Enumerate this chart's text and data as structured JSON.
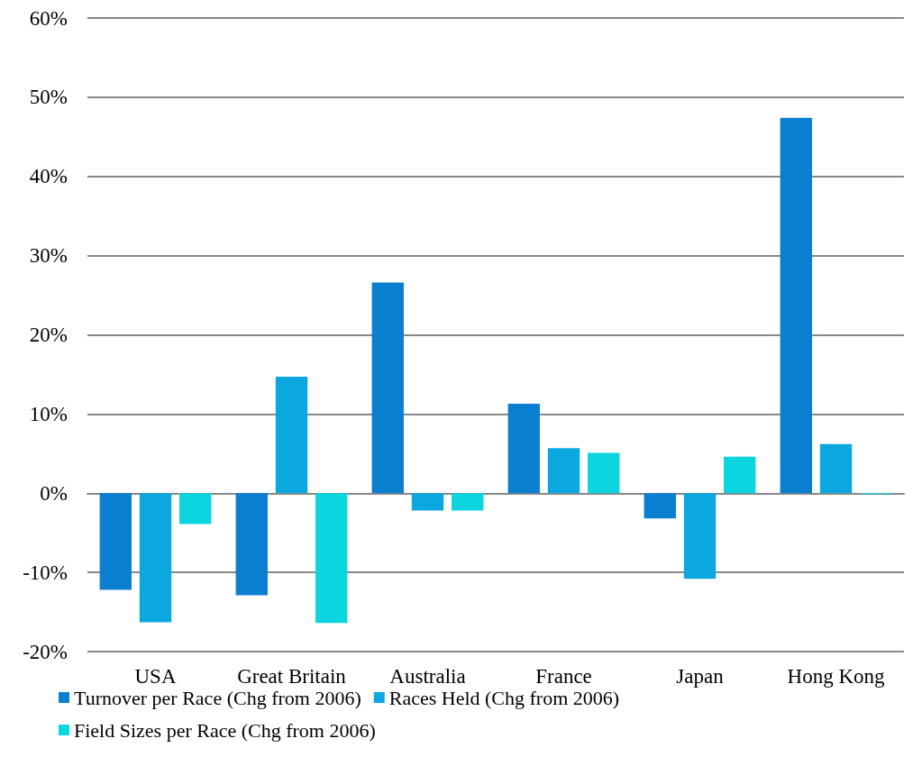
{
  "chart_data": {
    "type": "bar",
    "categories": [
      "USA",
      "Great Britain",
      "Australia",
      "France",
      "Japan",
      "Hong Kong"
    ],
    "series": [
      {
        "name": "Turnover per Race (Chg from 2006)",
        "color": "#0b7fcf",
        "values": [
          -12.2,
          -12.9,
          26.6,
          11.3,
          -3.2,
          47.4
        ]
      },
      {
        "name": "Races Held (Chg from 2006)",
        "color": "#0aa8df",
        "values": [
          -16.3,
          14.7,
          -2.2,
          5.7,
          -10.8,
          6.2
        ]
      },
      {
        "name": "Field Sizes per Race (Chg from 2006)",
        "color": "#0bd5de",
        "values": [
          -3.9,
          -16.4,
          -2.2,
          5.1,
          4.6,
          -0.1
        ]
      }
    ],
    "ylim": [
      -20,
      60
    ],
    "yticks": [
      {
        "value": -20,
        "label": "-20%"
      },
      {
        "value": -10,
        "label": "-10%"
      },
      {
        "value": 0,
        "label": "0%"
      },
      {
        "value": 10,
        "label": "10%"
      },
      {
        "value": 20,
        "label": "20%"
      },
      {
        "value": 30,
        "label": "30%"
      },
      {
        "value": 40,
        "label": "40%"
      },
      {
        "value": 50,
        "label": "50%"
      },
      {
        "value": 60,
        "label": "60%"
      }
    ],
    "grid": "y",
    "legend": "bottom left"
  }
}
